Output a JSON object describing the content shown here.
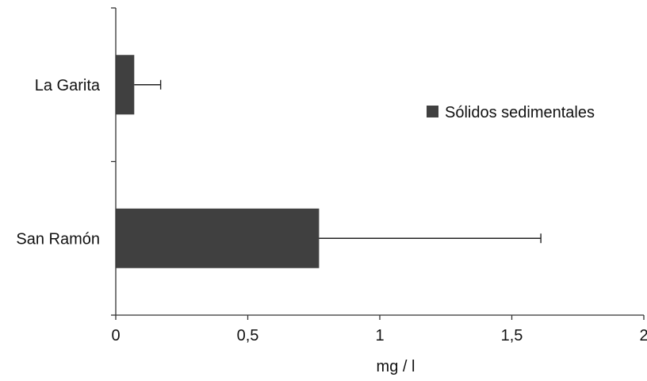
{
  "chart_data": {
    "type": "bar",
    "orientation": "horizontal",
    "categories": [
      "La Garita",
      "San Ramón"
    ],
    "series": [
      {
        "name": "Sólidos sedimentales",
        "values": [
          0.07,
          0.77
        ],
        "error_upper": [
          0.17,
          1.61
        ]
      }
    ],
    "xlabel": "mg / l",
    "ylabel": "",
    "xlim": [
      0,
      2
    ],
    "xticks": [
      0,
      0.5,
      1,
      1.5,
      2
    ],
    "xtick_labels": [
      "0",
      "0,5",
      "1",
      "1,5",
      "2"
    ],
    "grid": false,
    "legend_position": "right",
    "colors": {
      "bar": "#404040",
      "axis": "#333333",
      "error_bar": "#222222"
    }
  }
}
